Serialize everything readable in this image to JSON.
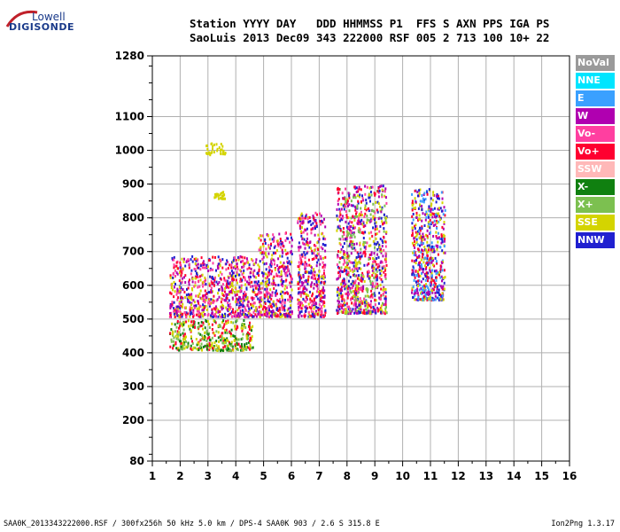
{
  "logo": {
    "line1": "Lowell",
    "line2": "DIGISONDE"
  },
  "header": {
    "line1": "Station YYYY DAY   DDD HHMMSS P1  FFS S AXN PPS IGA PS",
    "line2": "SaoLuis 2013 Dec09 343 222000 RSF 005 2 713 100 10+ 22"
  },
  "footer": {
    "left": "SAA0K_2013343222000.RSF / 300fx256h 50 kHz 5.0 km / DPS-4 SAA0K 903 / 2.6 S 315.8 E",
    "right": "Ion2Png 1.3.17"
  },
  "legend": [
    {
      "label": "NoVal",
      "color": "#9a9a9a"
    },
    {
      "label": "NNE",
      "color": "#00e5ff"
    },
    {
      "label": "E",
      "color": "#3aa0ff"
    },
    {
      "label": "W",
      "color": "#b000b0"
    },
    {
      "label": "Vo-",
      "color": "#ff3fa0"
    },
    {
      "label": "Vo+",
      "color": "#ff0030"
    },
    {
      "label": "SSW",
      "color": "#ffb8b8"
    },
    {
      "label": "X-",
      "color": "#108010"
    },
    {
      "label": "X+",
      "color": "#7cc050"
    },
    {
      "label": "SSE",
      "color": "#d4d400"
    },
    {
      "label": "NNW",
      "color": "#2020d0"
    }
  ],
  "chart_data": {
    "type": "scatter",
    "xlim": [
      1,
      16
    ],
    "ylim": [
      80,
      1280
    ],
    "x_ticks": [
      1,
      2,
      3,
      4,
      5,
      6,
      7,
      8,
      9,
      10,
      11,
      12,
      13,
      14,
      15,
      16
    ],
    "y_ticks": [
      80,
      200,
      300,
      400,
      500,
      600,
      700,
      800,
      900,
      1000,
      1100,
      1280
    ],
    "grid": true,
    "legend_position": "right",
    "clusters": [
      {
        "x": [
          1.6,
          4.8
        ],
        "y": [
          510,
          690
        ],
        "color_mix": [
          "Vo-",
          "Vo+",
          "W",
          "NNW",
          "SSE"
        ]
      },
      {
        "x": [
          1.6,
          4.6
        ],
        "y": [
          410,
          500
        ],
        "color_mix": [
          "X-",
          "X+",
          "Vo+",
          "SSE"
        ]
      },
      {
        "x": [
          4.8,
          6.0
        ],
        "y": [
          510,
          760
        ],
        "color_mix": [
          "Vo-",
          "Vo+",
          "SSE",
          "NNW",
          "W"
        ]
      },
      {
        "x": [
          6.2,
          7.2
        ],
        "y": [
          510,
          820
        ],
        "color_mix": [
          "Vo-",
          "Vo+",
          "SSE",
          "W",
          "NNW"
        ]
      },
      {
        "x": [
          7.6,
          9.4
        ],
        "y": [
          520,
          900
        ],
        "color_mix": [
          "Vo-",
          "Vo+",
          "SSE",
          "W",
          "NNW",
          "X+"
        ]
      },
      {
        "x": [
          2.9,
          3.6
        ],
        "y": [
          990,
          1025
        ],
        "color_mix": [
          "SSE"
        ]
      },
      {
        "x": [
          3.2,
          3.6
        ],
        "y": [
          860,
          880
        ],
        "color_mix": [
          "SSE"
        ]
      },
      {
        "x": [
          10.3,
          11.5
        ],
        "y": [
          560,
          890
        ],
        "color_mix": [
          "Vo+",
          "W",
          "NNW",
          "SSE",
          "E"
        ]
      }
    ]
  }
}
